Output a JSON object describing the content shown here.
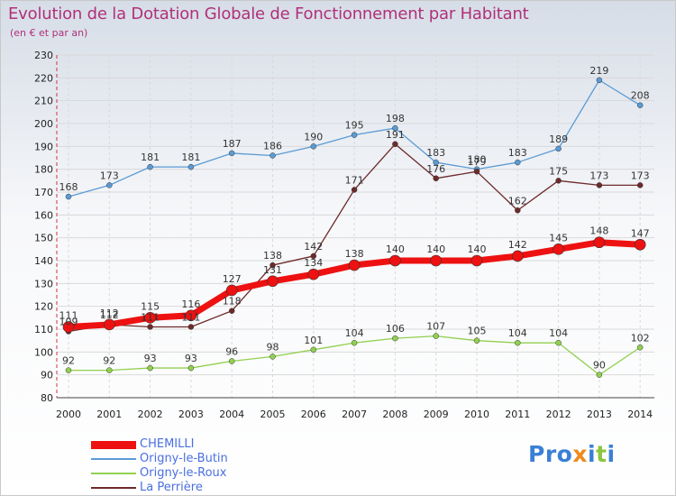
{
  "title": "Evolution de la Dotation Globale de Fonctionnement par Habitant",
  "subtitle": "(en € et par an)",
  "logo": "Proxiti",
  "colors": {
    "title": "#b0307a",
    "grid": "#d9d9d9",
    "legend_text": "#4a6fe0"
  },
  "chart_data": {
    "type": "line",
    "x": [
      2000,
      2001,
      2002,
      2003,
      2004,
      2005,
      2006,
      2007,
      2008,
      2009,
      2010,
      2011,
      2012,
      2013,
      2014
    ],
    "ylim": [
      80,
      230
    ],
    "yticks": [
      80,
      90,
      100,
      110,
      120,
      130,
      140,
      150,
      160,
      170,
      180,
      190,
      200,
      210,
      220,
      230
    ],
    "grid": true,
    "legend_position": "bottom-left",
    "series": [
      {
        "name": "Origny-le-Butin",
        "color": "#5b9bd5",
        "values": [
          168,
          173,
          181,
          181,
          187,
          186,
          190,
          195,
          198,
          183,
          180,
          183,
          189,
          219,
          208
        ]
      },
      {
        "name": "Origny-le-Roux",
        "color": "#92d050",
        "values": [
          92,
          92,
          93,
          93,
          96,
          98,
          101,
          104,
          106,
          107,
          105,
          104,
          104,
          90,
          102
        ]
      },
      {
        "name": "La Perrière",
        "color": "#6e2a2a",
        "values": [
          109,
          112,
          111,
          111,
          118,
          138,
          142,
          171,
          191,
          176,
          179,
          162,
          175,
          173,
          173
        ]
      },
      {
        "name": "CHEMILLI",
        "color": "#ee1111",
        "values": [
          111,
          112,
          115,
          116,
          127,
          131,
          134,
          138,
          140,
          140,
          140,
          142,
          145,
          148,
          147
        ]
      }
    ]
  }
}
